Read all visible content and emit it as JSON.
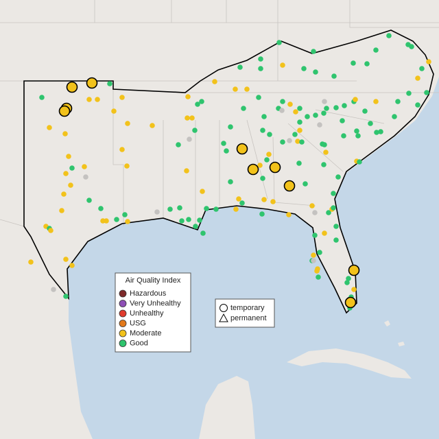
{
  "legend": {
    "title": "Air Quality Index",
    "items": [
      {
        "label": "Hazardous",
        "color": "#7e2a2a"
      },
      {
        "label": "Very Unhealthy",
        "color": "#8e4fb5"
      },
      {
        "label": "Unhealthy",
        "color": "#e03c2e"
      },
      {
        "label": "USG",
        "color": "#e37a1c"
      },
      {
        "label": "Moderate",
        "color": "#f2c21b"
      },
      {
        "label": "Good",
        "color": "#2fc46e"
      }
    ]
  },
  "shape_legend": {
    "items": [
      "temporary",
      "permanent"
    ]
  }
}
